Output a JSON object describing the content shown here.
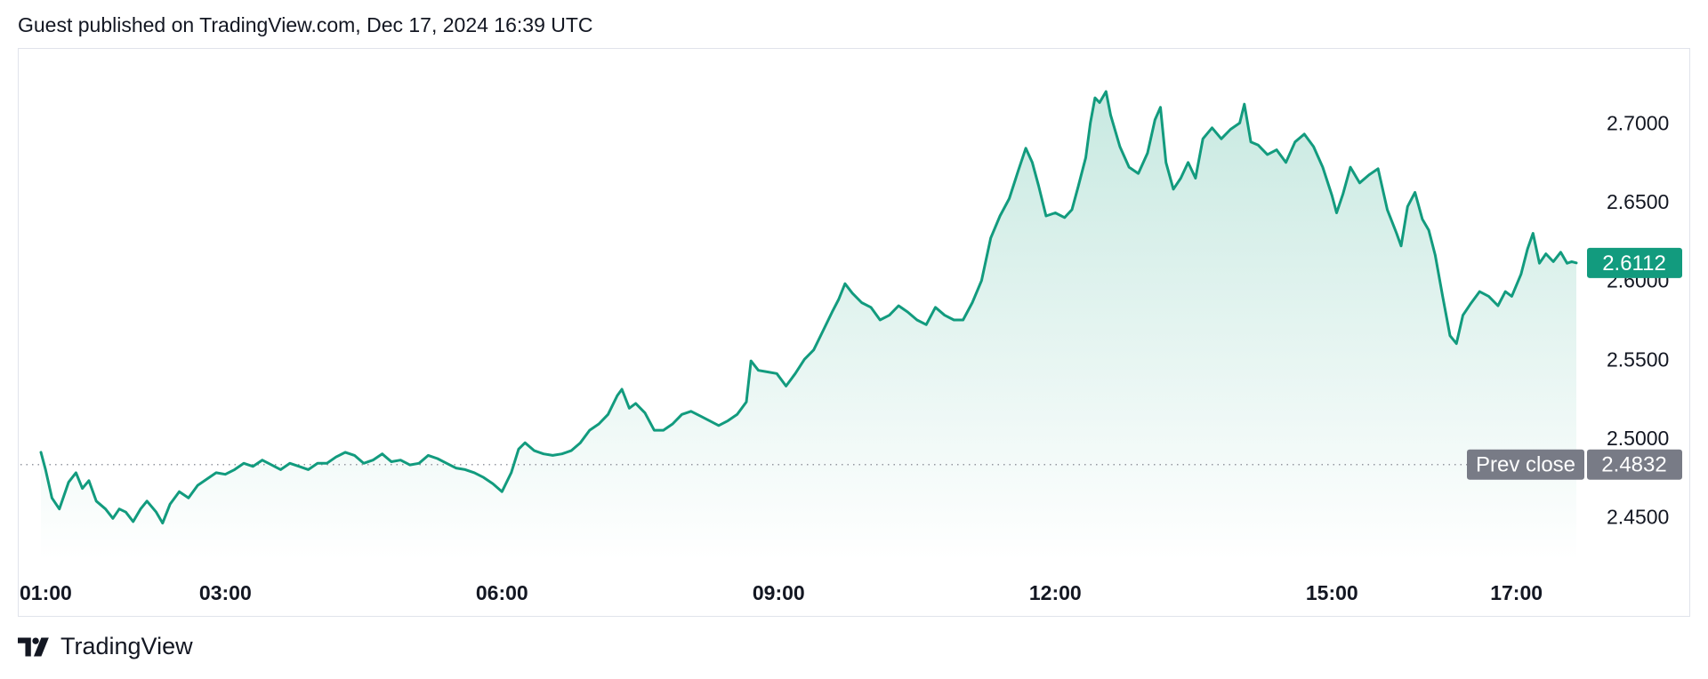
{
  "header": {
    "published_text": "Guest published on TradingView.com, Dec 17, 2024 16:39 UTC"
  },
  "footer": {
    "brand_text": "TradingView",
    "logo_icon": "tradingview-logo-icon"
  },
  "colors": {
    "line": "#129b7e",
    "area_top": "#c8e9e1",
    "area_bottom": "#ffffff",
    "last_price_badge": "#129b7e",
    "prev_close_badge": "#787b86",
    "prev_close_line": "#9598a1",
    "text": "#131722"
  },
  "chart_data": {
    "type": "area",
    "ylim": [
      2.43,
      2.72
    ],
    "y_ticks": [
      "2.7000",
      "2.6500",
      "2.6000",
      "2.5500",
      "2.5000",
      "2.4500"
    ],
    "y_tick_values": [
      2.7,
      2.65,
      2.6,
      2.55,
      2.5,
      2.45
    ],
    "x_ticks": [
      "01:00",
      "03:00",
      "06:00",
      "09:00",
      "12:00",
      "15:00",
      "17:00"
    ],
    "x_tick_hours": [
      1,
      3,
      6,
      9,
      12,
      15,
      17
    ],
    "x_range_hours": [
      1,
      17.65
    ],
    "last_price": 2.6112,
    "last_price_label": "2.6112",
    "prev_close": 2.4832,
    "prev_close_label": "2.4832",
    "prev_close_caption": "Prev close",
    "grid": false,
    "series": [
      {
        "points": [
          [
            1.0,
            2.491
          ],
          [
            1.05,
            2.48
          ],
          [
            1.12,
            2.462
          ],
          [
            1.2,
            2.455
          ],
          [
            1.3,
            2.472
          ],
          [
            1.38,
            2.478
          ],
          [
            1.45,
            2.468
          ],
          [
            1.52,
            2.473
          ],
          [
            1.6,
            2.46
          ],
          [
            1.7,
            2.455
          ],
          [
            1.78,
            2.449
          ],
          [
            1.85,
            2.455
          ],
          [
            1.92,
            2.453
          ],
          [
            2.0,
            2.447
          ],
          [
            2.08,
            2.455
          ],
          [
            2.15,
            2.46
          ],
          [
            2.25,
            2.453
          ],
          [
            2.32,
            2.446
          ],
          [
            2.4,
            2.458
          ],
          [
            2.5,
            2.466
          ],
          [
            2.6,
            2.462
          ],
          [
            2.7,
            2.47
          ],
          [
            2.8,
            2.474
          ],
          [
            2.9,
            2.478
          ],
          [
            3.0,
            2.477
          ],
          [
            3.1,
            2.48
          ],
          [
            3.2,
            2.484
          ],
          [
            3.3,
            2.482
          ],
          [
            3.4,
            2.486
          ],
          [
            3.5,
            2.483
          ],
          [
            3.6,
            2.48
          ],
          [
            3.7,
            2.484
          ],
          [
            3.8,
            2.482
          ],
          [
            3.9,
            2.48
          ],
          [
            4.0,
            2.484
          ],
          [
            4.1,
            2.484
          ],
          [
            4.2,
            2.488
          ],
          [
            4.3,
            2.491
          ],
          [
            4.4,
            2.489
          ],
          [
            4.5,
            2.484
          ],
          [
            4.6,
            2.486
          ],
          [
            4.7,
            2.49
          ],
          [
            4.8,
            2.485
          ],
          [
            4.9,
            2.486
          ],
          [
            5.0,
            2.483
          ],
          [
            5.1,
            2.484
          ],
          [
            5.2,
            2.489
          ],
          [
            5.3,
            2.487
          ],
          [
            5.4,
            2.484
          ],
          [
            5.5,
            2.481
          ],
          [
            5.6,
            2.48
          ],
          [
            5.7,
            2.478
          ],
          [
            5.8,
            2.475
          ],
          [
            5.9,
            2.471
          ],
          [
            6.0,
            2.466
          ],
          [
            6.1,
            2.478
          ],
          [
            6.18,
            2.493
          ],
          [
            6.25,
            2.497
          ],
          [
            6.35,
            2.492
          ],
          [
            6.45,
            2.49
          ],
          [
            6.55,
            2.489
          ],
          [
            6.65,
            2.49
          ],
          [
            6.75,
            2.492
          ],
          [
            6.85,
            2.497
          ],
          [
            6.95,
            2.505
          ],
          [
            7.05,
            2.509
          ],
          [
            7.15,
            2.515
          ],
          [
            7.25,
            2.527
          ],
          [
            7.3,
            2.531
          ],
          [
            7.38,
            2.519
          ],
          [
            7.45,
            2.522
          ],
          [
            7.55,
            2.516
          ],
          [
            7.65,
            2.505
          ],
          [
            7.75,
            2.505
          ],
          [
            7.85,
            2.509
          ],
          [
            7.95,
            2.515
          ],
          [
            8.05,
            2.517
          ],
          [
            8.15,
            2.514
          ],
          [
            8.25,
            2.511
          ],
          [
            8.35,
            2.508
          ],
          [
            8.45,
            2.511
          ],
          [
            8.55,
            2.515
          ],
          [
            8.65,
            2.523
          ],
          [
            8.7,
            2.549
          ],
          [
            8.78,
            2.543
          ],
          [
            8.88,
            2.542
          ],
          [
            8.98,
            2.541
          ],
          [
            9.08,
            2.533
          ],
          [
            9.18,
            2.541
          ],
          [
            9.28,
            2.55
          ],
          [
            9.38,
            2.556
          ],
          [
            9.48,
            2.568
          ],
          [
            9.58,
            2.58
          ],
          [
            9.65,
            2.588
          ],
          [
            9.72,
            2.598
          ],
          [
            9.8,
            2.592
          ],
          [
            9.9,
            2.586
          ],
          [
            10.0,
            2.583
          ],
          [
            10.1,
            2.575
          ],
          [
            10.2,
            2.578
          ],
          [
            10.3,
            2.584
          ],
          [
            10.4,
            2.58
          ],
          [
            10.5,
            2.575
          ],
          [
            10.6,
            2.572
          ],
          [
            10.7,
            2.583
          ],
          [
            10.8,
            2.578
          ],
          [
            10.9,
            2.575
          ],
          [
            11.0,
            2.575
          ],
          [
            11.1,
            2.586
          ],
          [
            11.2,
            2.6
          ],
          [
            11.3,
            2.627
          ],
          [
            11.4,
            2.641
          ],
          [
            11.5,
            2.652
          ],
          [
            11.6,
            2.67
          ],
          [
            11.68,
            2.684
          ],
          [
            11.75,
            2.675
          ],
          [
            11.82,
            2.66
          ],
          [
            11.9,
            2.641
          ],
          [
            12.0,
            2.643
          ],
          [
            12.1,
            2.64
          ],
          [
            12.18,
            2.645
          ],
          [
            12.25,
            2.66
          ],
          [
            12.33,
            2.678
          ],
          [
            12.38,
            2.7
          ],
          [
            12.43,
            2.716
          ],
          [
            12.48,
            2.713
          ],
          [
            12.55,
            2.72
          ],
          [
            12.6,
            2.705
          ],
          [
            12.7,
            2.685
          ],
          [
            12.8,
            2.672
          ],
          [
            12.9,
            2.668
          ],
          [
            13.0,
            2.681
          ],
          [
            13.08,
            2.702
          ],
          [
            13.14,
            2.71
          ],
          [
            13.2,
            2.675
          ],
          [
            13.28,
            2.658
          ],
          [
            13.36,
            2.665
          ],
          [
            13.44,
            2.675
          ],
          [
            13.52,
            2.665
          ],
          [
            13.6,
            2.69
          ],
          [
            13.7,
            2.697
          ],
          [
            13.8,
            2.69
          ],
          [
            13.9,
            2.696
          ],
          [
            14.0,
            2.7
          ],
          [
            14.05,
            2.712
          ],
          [
            14.12,
            2.688
          ],
          [
            14.2,
            2.686
          ],
          [
            14.3,
            2.68
          ],
          [
            14.4,
            2.683
          ],
          [
            14.5,
            2.675
          ],
          [
            14.6,
            2.688
          ],
          [
            14.7,
            2.693
          ],
          [
            14.8,
            2.685
          ],
          [
            14.9,
            2.672
          ],
          [
            15.0,
            2.654
          ],
          [
            15.05,
            2.643
          ],
          [
            15.12,
            2.655
          ],
          [
            15.2,
            2.672
          ],
          [
            15.3,
            2.662
          ],
          [
            15.4,
            2.667
          ],
          [
            15.5,
            2.671
          ],
          [
            15.6,
            2.645
          ],
          [
            15.7,
            2.63
          ],
          [
            15.75,
            2.622
          ],
          [
            15.82,
            2.647
          ],
          [
            15.9,
            2.656
          ],
          [
            15.98,
            2.639
          ],
          [
            16.05,
            2.632
          ],
          [
            16.12,
            2.616
          ],
          [
            16.2,
            2.59
          ],
          [
            16.28,
            2.565
          ],
          [
            16.35,
            2.56
          ],
          [
            16.42,
            2.578
          ],
          [
            16.5,
            2.585
          ],
          [
            16.6,
            2.593
          ],
          [
            16.7,
            2.59
          ],
          [
            16.8,
            2.584
          ],
          [
            16.88,
            2.593
          ],
          [
            16.95,
            2.59
          ],
          [
            17.05,
            2.604
          ],
          [
            17.12,
            2.62
          ],
          [
            17.18,
            2.63
          ],
          [
            17.25,
            2.611
          ],
          [
            17.32,
            2.617
          ],
          [
            17.4,
            2.612
          ],
          [
            17.48,
            2.618
          ],
          [
            17.55,
            2.611
          ],
          [
            17.6,
            2.612
          ],
          [
            17.65,
            2.6112
          ]
        ]
      }
    ]
  }
}
